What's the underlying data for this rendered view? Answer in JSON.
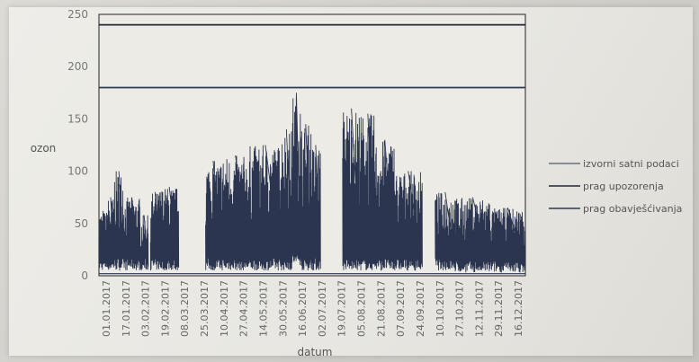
{
  "chart_data": {
    "type": "line",
    "title": "",
    "xlabel": "datum",
    "ylabel": "ozon",
    "ylim": [
      0,
      250
    ],
    "yticks": [
      0,
      50,
      100,
      150,
      200,
      250
    ],
    "xticks": [
      "01.01.2017",
      "17.01.2017",
      "03.02.2017",
      "19.02.2017",
      "08.03.2017",
      "25.03.2017",
      "10.04.2017",
      "27.04.2017",
      "14.05.2017",
      "30.05.2017",
      "16.06.2017",
      "02.07.2017",
      "19.07.2017",
      "05.08.2017",
      "21.08.2017",
      "07.09.2017",
      "24.09.2017",
      "10.10.2017",
      "27.10.2017",
      "12.11.2017",
      "29.11.2017",
      "16.12.2017"
    ],
    "grid": false,
    "legend_position": "right",
    "series": [
      {
        "name": "izvorni satni podaci",
        "color": "#2b3550",
        "gaps": [
          [
            "2017-01-01",
            "2017-01-01"
          ],
          [
            "2017-03-11",
            "2017-04-02"
          ],
          [
            "2017-07-10",
            "2017-07-28"
          ],
          [
            "2017-10-05",
            "2017-10-15"
          ]
        ],
        "segments": [
          {
            "from": "2017-01-01",
            "to": "2017-01-08",
            "low": 5,
            "high": 62
          },
          {
            "from": "2017-01-08",
            "to": "2017-01-14",
            "low": 5,
            "high": 75
          },
          {
            "from": "2017-01-14",
            "to": "2017-01-22",
            "low": 5,
            "high": 100
          },
          {
            "from": "2017-01-22",
            "to": "2017-02-05",
            "low": 5,
            "high": 75
          },
          {
            "from": "2017-02-05",
            "to": "2017-02-12",
            "low": 5,
            "high": 58
          },
          {
            "from": "2017-02-14",
            "to": "2017-02-22",
            "low": 5,
            "high": 80
          },
          {
            "from": "2017-02-22",
            "to": "2017-03-10",
            "low": 5,
            "high": 85
          },
          {
            "from": "2017-04-02",
            "to": "2017-04-15",
            "low": 5,
            "high": 110
          },
          {
            "from": "2017-04-15",
            "to": "2017-05-10",
            "low": 5,
            "high": 115
          },
          {
            "from": "2017-05-10",
            "to": "2017-06-05",
            "low": 5,
            "high": 125
          },
          {
            "from": "2017-06-05",
            "to": "2017-06-15",
            "low": 5,
            "high": 140
          },
          {
            "from": "2017-06-15",
            "to": "2017-06-22",
            "low": 10,
            "high": 175
          },
          {
            "from": "2017-06-22",
            "to": "2017-07-01",
            "low": 5,
            "high": 145
          },
          {
            "from": "2017-07-01",
            "to": "2017-07-09",
            "low": 5,
            "high": 125
          },
          {
            "from": "2017-07-28",
            "to": "2017-08-12",
            "low": 5,
            "high": 160
          },
          {
            "from": "2017-08-12",
            "to": "2017-08-25",
            "low": 5,
            "high": 155
          },
          {
            "from": "2017-08-25",
            "to": "2017-09-10",
            "low": 5,
            "high": 130
          },
          {
            "from": "2017-09-10",
            "to": "2017-10-04",
            "low": 5,
            "high": 100
          },
          {
            "from": "2017-10-15",
            "to": "2017-11-01",
            "low": 5,
            "high": 80
          },
          {
            "from": "2017-11-01",
            "to": "2017-12-01",
            "low": 3,
            "high": 75
          },
          {
            "from": "2017-12-01",
            "to": "2017-12-31",
            "low": 3,
            "high": 65
          }
        ]
      },
      {
        "name": "prag upozorenja",
        "color": "#1e2638",
        "constant": 240
      },
      {
        "name": "prag obavješćivanja",
        "color": "#2f3a52",
        "constant": 180
      }
    ]
  }
}
